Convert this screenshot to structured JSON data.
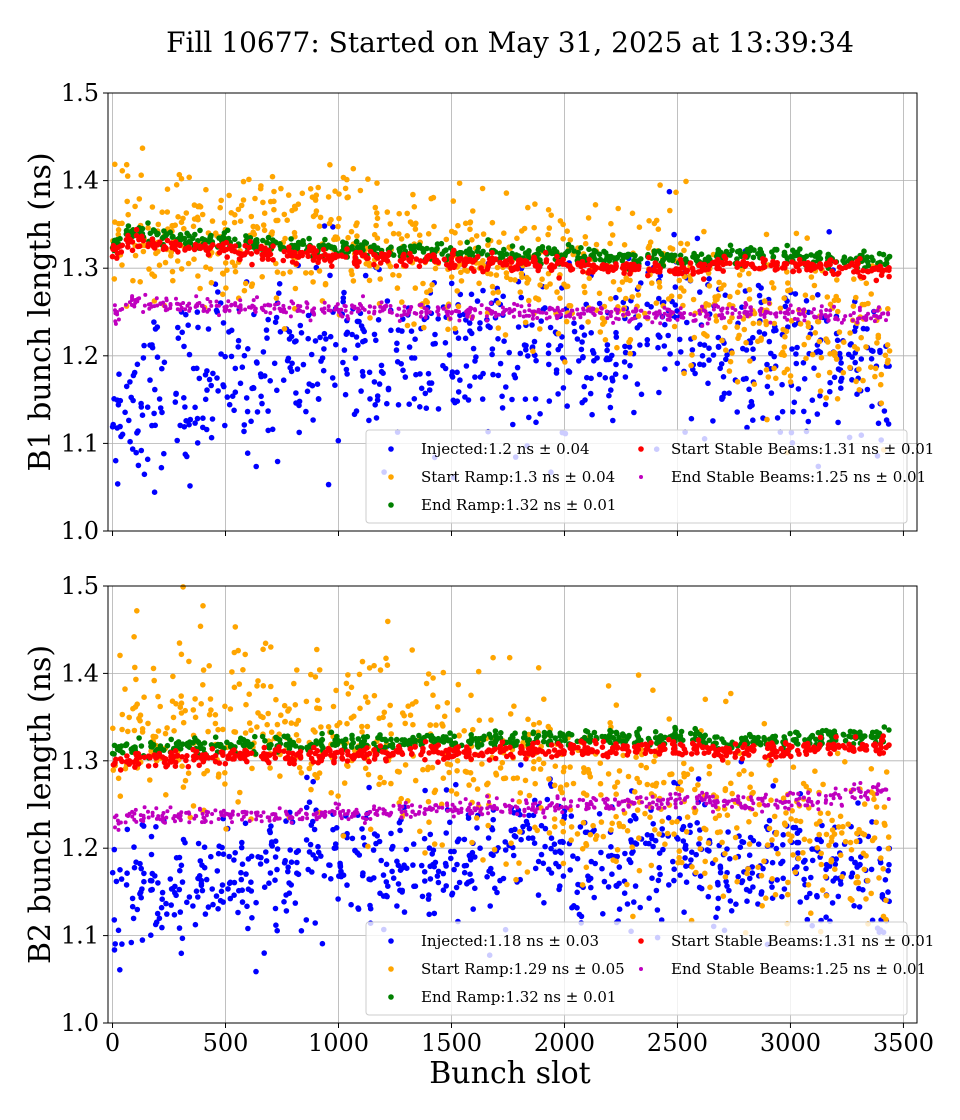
{
  "figure": {
    "title": "Fill 10677: Started on May 31, 2025 at 13:39:34",
    "xlabel": "Bunch slot"
  },
  "colors": {
    "Injected": "#0000ff",
    "Start Ramp": "#ffa500",
    "End Ramp": "#008000",
    "Start Stable Beams": "#ff0000",
    "End Stable Beams": "#bf00bf"
  },
  "chart_data": [
    {
      "type": "scatter",
      "title": "",
      "xlabel": "",
      "ylabel": "B1 bunch length (ns)",
      "xlim": [
        -20,
        3560
      ],
      "ylim": [
        1.0,
        1.5
      ],
      "xticks": [
        "0",
        "500",
        "1000",
        "1500",
        "2000",
        "2500",
        "3000",
        "3500"
      ],
      "yticks": [
        "1.0",
        "1.1",
        "1.2",
        "1.3",
        "1.4",
        "1.5"
      ],
      "grid": true,
      "legend_position": "bottom-right",
      "legend": [
        {
          "label": "Injected:1.2 ns ± 0.04",
          "series": "Injected"
        },
        {
          "label": "Start Ramp:1.3 ns ± 0.04",
          "series": "Start Ramp"
        },
        {
          "label": "End Ramp:1.32 ns ± 0.01",
          "series": "End Ramp"
        },
        {
          "label": "Start Stable Beams:1.31 ns ± 0.01",
          "series": "Start Stable Beams"
        },
        {
          "label": "End Stable Beams:1.25 ns ± 0.01",
          "series": "End Stable Beams"
        }
      ],
      "series": [
        {
          "name": "Injected",
          "mean": 1.2,
          "std": 0.04,
          "x": [
            0,
            100,
            200,
            300,
            400,
            500,
            600,
            700,
            800,
            900,
            1000,
            1100,
            1200,
            1300,
            1400,
            1500,
            1600,
            1700,
            1800,
            1900,
            2000,
            2100,
            2200,
            2300,
            2400,
            2500,
            2600,
            2700,
            2800,
            2900,
            3000,
            3100,
            3200,
            3300,
            3400
          ],
          "y": [
            1.13,
            1.15,
            1.16,
            1.16,
            1.17,
            1.18,
            1.18,
            1.19,
            1.2,
            1.21,
            1.22,
            1.2,
            1.19,
            1.19,
            1.2,
            1.2,
            1.2,
            1.2,
            1.2,
            1.19,
            1.2,
            1.2,
            1.2,
            1.21,
            1.23,
            1.24,
            1.22,
            1.2,
            1.2,
            1.2,
            1.2,
            1.19,
            1.19,
            1.19,
            1.18
          ]
        },
        {
          "name": "Start Ramp",
          "mean": 1.3,
          "std": 0.04,
          "x": [
            0,
            100,
            200,
            300,
            400,
            500,
            600,
            700,
            800,
            900,
            1000,
            1100,
            1200,
            1300,
            1400,
            1500,
            1600,
            1700,
            1800,
            1900,
            2000,
            2100,
            2200,
            2300,
            2400,
            2500,
            2600,
            2700,
            2800,
            2900,
            3000,
            3100,
            3200,
            3300,
            3400
          ],
          "y": [
            1.33,
            1.34,
            1.33,
            1.34,
            1.34,
            1.33,
            1.33,
            1.34,
            1.33,
            1.34,
            1.36,
            1.32,
            1.32,
            1.31,
            1.31,
            1.32,
            1.31,
            1.3,
            1.3,
            1.3,
            1.29,
            1.29,
            1.28,
            1.28,
            1.29,
            1.3,
            1.27,
            1.25,
            1.25,
            1.24,
            1.24,
            1.23,
            1.22,
            1.22,
            1.21
          ]
        },
        {
          "name": "End Ramp",
          "mean": 1.32,
          "std": 0.01,
          "x": [
            0,
            100,
            200,
            300,
            400,
            500,
            600,
            700,
            800,
            900,
            1000,
            1100,
            1200,
            1300,
            1400,
            1500,
            1600,
            1700,
            1800,
            1900,
            2000,
            2100,
            2200,
            2300,
            2400,
            2500,
            2600,
            2700,
            2800,
            2900,
            3000,
            3100,
            3200,
            3300,
            3400
          ],
          "y": [
            1.33,
            1.34,
            1.337,
            1.335,
            1.333,
            1.331,
            1.329,
            1.327,
            1.326,
            1.325,
            1.324,
            1.323,
            1.322,
            1.321,
            1.32,
            1.319,
            1.318,
            1.317,
            1.316,
            1.316,
            1.315,
            1.314,
            1.313,
            1.312,
            1.311,
            1.31,
            1.309,
            1.316,
            1.315,
            1.314,
            1.313,
            1.312,
            1.31,
            1.309,
            1.308
          ]
        },
        {
          "name": "Start Stable Beams",
          "mean": 1.31,
          "std": 0.01,
          "x": [
            0,
            100,
            200,
            300,
            400,
            500,
            600,
            700,
            800,
            900,
            1000,
            1100,
            1200,
            1300,
            1400,
            1500,
            1600,
            1700,
            1800,
            1900,
            2000,
            2100,
            2200,
            2300,
            2400,
            2500,
            2600,
            2700,
            2800,
            2900,
            3000,
            3100,
            3200,
            3300,
            3400
          ],
          "y": [
            1.32,
            1.33,
            1.327,
            1.325,
            1.323,
            1.321,
            1.319,
            1.317,
            1.316,
            1.315,
            1.314,
            1.313,
            1.312,
            1.311,
            1.31,
            1.309,
            1.308,
            1.307,
            1.306,
            1.305,
            1.304,
            1.303,
            1.302,
            1.301,
            1.3,
            1.299,
            1.298,
            1.306,
            1.305,
            1.304,
            1.303,
            1.302,
            1.3,
            1.299,
            1.298
          ]
        },
        {
          "name": "End Stable Beams",
          "mean": 1.25,
          "std": 0.01,
          "x": [
            0,
            100,
            200,
            300,
            400,
            500,
            600,
            700,
            800,
            900,
            1000,
            1100,
            1200,
            1300,
            1400,
            1500,
            1600,
            1700,
            1800,
            1900,
            2000,
            2100,
            2200,
            2300,
            2400,
            2500,
            2600,
            2700,
            2800,
            2900,
            3000,
            3100,
            3200,
            3300,
            3400
          ],
          "y": [
            1.25,
            1.26,
            1.26,
            1.258,
            1.257,
            1.256,
            1.255,
            1.254,
            1.253,
            1.253,
            1.252,
            1.252,
            1.252,
            1.251,
            1.251,
            1.25,
            1.25,
            1.25,
            1.25,
            1.25,
            1.249,
            1.249,
            1.248,
            1.248,
            1.247,
            1.246,
            1.245,
            1.251,
            1.25,
            1.249,
            1.248,
            1.247,
            1.246,
            1.245,
            1.245
          ]
        }
      ]
    },
    {
      "type": "scatter",
      "title": "",
      "xlabel": "Bunch slot",
      "ylabel": "B2 bunch length (ns)",
      "xlim": [
        -20,
        3560
      ],
      "ylim": [
        1.0,
        1.5
      ],
      "xticks": [
        "0",
        "500",
        "1000",
        "1500",
        "2000",
        "2500",
        "3000",
        "3500"
      ],
      "yticks": [
        "1.0",
        "1.1",
        "1.2",
        "1.3",
        "1.4",
        "1.5"
      ],
      "grid": true,
      "legend_position": "bottom-right",
      "legend": [
        {
          "label": "Injected:1.18 ns ± 0.03",
          "series": "Injected"
        },
        {
          "label": "Start Ramp:1.29 ns ± 0.05",
          "series": "Start Ramp"
        },
        {
          "label": "End Ramp:1.32 ns ± 0.01",
          "series": "End Ramp"
        },
        {
          "label": "Start Stable Beams:1.31 ns ± 0.01",
          "series": "Start Stable Beams"
        },
        {
          "label": "End Stable Beams:1.25 ns ± 0.01",
          "series": "End Stable Beams"
        }
      ],
      "series": [
        {
          "name": "Injected",
          "mean": 1.18,
          "std": 0.03,
          "x": [
            0,
            100,
            200,
            300,
            400,
            500,
            600,
            700,
            800,
            900,
            1000,
            1100,
            1200,
            1300,
            1400,
            1500,
            1600,
            1700,
            1800,
            1900,
            2000,
            2100,
            2200,
            2300,
            2400,
            2500,
            2600,
            2700,
            2800,
            2900,
            3000,
            3100,
            3200,
            3300,
            3400
          ],
          "y": [
            1.12,
            1.16,
            1.15,
            1.15,
            1.16,
            1.17,
            1.17,
            1.17,
            1.18,
            1.2,
            1.19,
            1.18,
            1.18,
            1.18,
            1.18,
            1.18,
            1.18,
            1.19,
            1.22,
            1.21,
            1.19,
            1.18,
            1.18,
            1.19,
            1.19,
            1.2,
            1.19,
            1.17,
            1.18,
            1.19,
            1.19,
            1.17,
            1.17,
            1.17,
            1.16
          ]
        },
        {
          "name": "Start Ramp",
          "mean": 1.29,
          "std": 0.05,
          "x": [
            0,
            100,
            200,
            300,
            400,
            500,
            600,
            700,
            800,
            900,
            1000,
            1100,
            1200,
            1300,
            1400,
            1500,
            1600,
            1700,
            1800,
            1900,
            2000,
            2100,
            2200,
            2300,
            2400,
            2500,
            2600,
            2700,
            2800,
            2900,
            3000,
            3100,
            3200,
            3300,
            3400
          ],
          "y": [
            1.34,
            1.35,
            1.34,
            1.35,
            1.35,
            1.34,
            1.33,
            1.33,
            1.34,
            1.33,
            1.33,
            1.32,
            1.33,
            1.31,
            1.3,
            1.3,
            1.29,
            1.29,
            1.3,
            1.28,
            1.27,
            1.27,
            1.27,
            1.26,
            1.25,
            1.25,
            1.24,
            1.24,
            1.23,
            1.23,
            1.22,
            1.21,
            1.21,
            1.2,
            1.2
          ]
        },
        {
          "name": "End Ramp",
          "mean": 1.32,
          "std": 0.01,
          "x": [
            0,
            100,
            200,
            300,
            400,
            500,
            600,
            700,
            800,
            900,
            1000,
            1100,
            1200,
            1300,
            1400,
            1500,
            1600,
            1700,
            1800,
            1900,
            2000,
            2100,
            2200,
            2300,
            2400,
            2500,
            2600,
            2700,
            2800,
            2900,
            3000,
            3100,
            3200,
            3300,
            3400
          ],
          "y": [
            1.31,
            1.315,
            1.315,
            1.316,
            1.316,
            1.317,
            1.318,
            1.319,
            1.32,
            1.32,
            1.32,
            1.321,
            1.321,
            1.322,
            1.322,
            1.323,
            1.323,
            1.324,
            1.324,
            1.325,
            1.325,
            1.326,
            1.326,
            1.327,
            1.327,
            1.328,
            1.328,
            1.321,
            1.322,
            1.323,
            1.324,
            1.325,
            1.326,
            1.327,
            1.328
          ]
        },
        {
          "name": "Start Stable Beams",
          "mean": 1.31,
          "std": 0.01,
          "x": [
            0,
            100,
            200,
            300,
            400,
            500,
            600,
            700,
            800,
            900,
            1000,
            1100,
            1200,
            1300,
            1400,
            1500,
            1600,
            1700,
            1800,
            1900,
            2000,
            2100,
            2200,
            2300,
            2400,
            2500,
            2600,
            2700,
            2800,
            2900,
            3000,
            3100,
            3200,
            3300,
            3400
          ],
          "y": [
            1.3,
            1.302,
            1.303,
            1.303,
            1.304,
            1.305,
            1.305,
            1.306,
            1.306,
            1.307,
            1.307,
            1.308,
            1.308,
            1.309,
            1.309,
            1.31,
            1.31,
            1.311,
            1.311,
            1.312,
            1.312,
            1.313,
            1.313,
            1.314,
            1.314,
            1.315,
            1.315,
            1.31,
            1.311,
            1.312,
            1.313,
            1.314,
            1.315,
            1.316,
            1.317
          ]
        },
        {
          "name": "End Stable Beams",
          "mean": 1.25,
          "std": 0.01,
          "x": [
            0,
            100,
            200,
            300,
            400,
            500,
            600,
            700,
            800,
            900,
            1000,
            1100,
            1200,
            1300,
            1400,
            1500,
            1600,
            1700,
            1800,
            1900,
            2000,
            2100,
            2200,
            2300,
            2400,
            2500,
            2600,
            2700,
            2800,
            2900,
            3000,
            3100,
            3200,
            3300,
            3400
          ],
          "y": [
            1.23,
            1.235,
            1.236,
            1.236,
            1.237,
            1.238,
            1.238,
            1.238,
            1.239,
            1.24,
            1.24,
            1.241,
            1.242,
            1.242,
            1.243,
            1.244,
            1.245,
            1.246,
            1.247,
            1.248,
            1.249,
            1.25,
            1.251,
            1.252,
            1.253,
            1.254,
            1.255,
            1.25,
            1.251,
            1.252,
            1.254,
            1.256,
            1.258,
            1.262,
            1.266
          ]
        }
      ]
    }
  ]
}
